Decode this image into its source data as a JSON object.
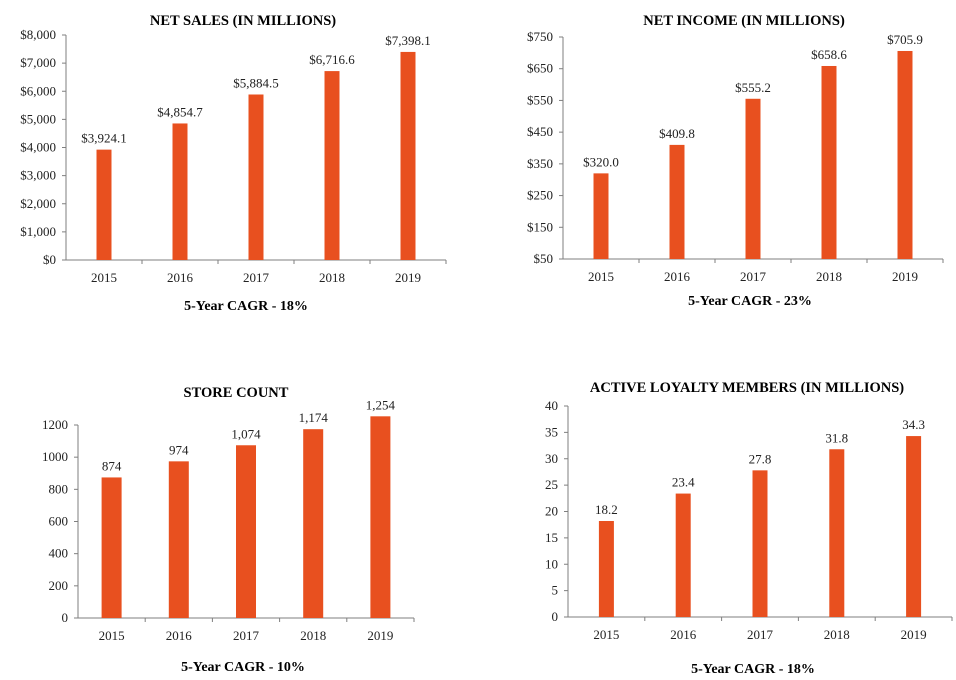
{
  "chart_data": [
    {
      "type": "bar",
      "title": "NET SALES (IN MILLIONS)",
      "categories": [
        "2015",
        "2016",
        "2017",
        "2018",
        "2019"
      ],
      "values": [
        3924.1,
        4854.7,
        5884.5,
        6716.6,
        7398.1
      ],
      "data_labels": [
        "$3,924.1",
        "$4,854.7",
        "$5,884.5",
        "$6,716.6",
        "$7,398.1"
      ],
      "ylim": [
        0,
        8000
      ],
      "yticks": [
        0,
        1000,
        2000,
        3000,
        4000,
        5000,
        6000,
        7000,
        8000
      ],
      "ytick_labels": [
        "$0",
        "$1,000",
        "$2,000",
        "$3,000",
        "$4,000",
        "$5,000",
        "$6,000",
        "$7,000",
        "$8,000"
      ],
      "footer": "5-Year CAGR - 18%",
      "bar_color": "#E8501F",
      "grid": false
    },
    {
      "type": "bar",
      "title": "NET INCOME (IN MILLIONS)",
      "categories": [
        "2015",
        "2016",
        "2017",
        "2018",
        "2019"
      ],
      "values": [
        320.0,
        409.8,
        555.2,
        658.6,
        705.9
      ],
      "data_labels": [
        "$320.0",
        "$409.8",
        "$555.2",
        "$658.6",
        "$705.9"
      ],
      "ylim": [
        50,
        750
      ],
      "yticks": [
        50,
        150,
        250,
        350,
        450,
        550,
        650,
        750
      ],
      "ytick_labels": [
        "$50",
        "$150",
        "$250",
        "$350",
        "$450",
        "$550",
        "$650",
        "$750"
      ],
      "footer": "5-Year CAGR - 23%",
      "bar_color": "#E8501F",
      "grid": false
    },
    {
      "type": "bar",
      "title": "STORE COUNT",
      "categories": [
        "2015",
        "2016",
        "2017",
        "2018",
        "2019"
      ],
      "values": [
        874,
        974,
        1074,
        1174,
        1254
      ],
      "data_labels": [
        "874",
        "974",
        "1,074",
        "1,174",
        "1,254"
      ],
      "ylim": [
        0,
        1200
      ],
      "yticks": [
        0,
        200,
        400,
        600,
        800,
        1000,
        1200
      ],
      "ytick_labels": [
        "0",
        "200",
        "400",
        "600",
        "800",
        "1000",
        "1200"
      ],
      "footer": "5-Year CAGR - 10%",
      "bar_color": "#E8501F",
      "grid": false
    },
    {
      "type": "bar",
      "title": "ACTIVE LOYALTY MEMBERS (IN MILLIONS)",
      "categories": [
        "2015",
        "2016",
        "2017",
        "2018",
        "2019"
      ],
      "values": [
        18.2,
        23.4,
        27.8,
        31.8,
        34.3
      ],
      "data_labels": [
        "18.2",
        "23.4",
        "27.8",
        "31.8",
        "34.3"
      ],
      "ylim": [
        0,
        40
      ],
      "yticks": [
        0,
        5,
        10,
        15,
        20,
        25,
        30,
        35,
        40
      ],
      "ytick_labels": [
        "0",
        "5",
        "10",
        "15",
        "20",
        "25",
        "30",
        "35",
        "40"
      ],
      "footer": "5-Year CAGR - 18%",
      "bar_color": "#E8501F",
      "grid": false
    }
  ]
}
